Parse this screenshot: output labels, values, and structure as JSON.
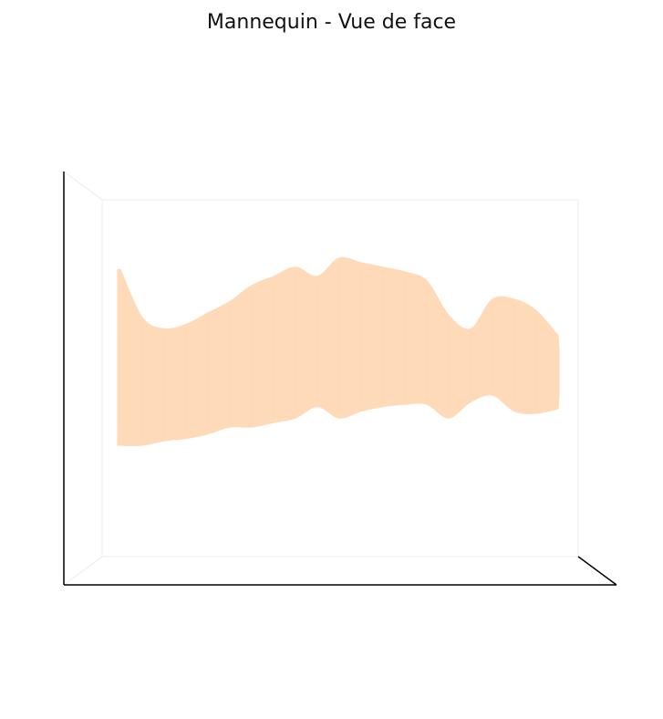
{
  "chart_data": {
    "type": "3d-surface",
    "title": "Mannequin - Vue de face",
    "view": "front",
    "axes_visible": false,
    "grid": false,
    "panes": "white",
    "colors": {
      "surface": "#FFDAB9",
      "surface_shade": "#F7C99E",
      "axis_line": "#000000",
      "pane_edge": "#EBEBEB"
    },
    "series": [
      {
        "profile": {
          "z": [
            0.0,
            0.05,
            0.1,
            0.15,
            0.2,
            0.25,
            0.3,
            0.35,
            0.4,
            0.45,
            0.5,
            0.55,
            0.6,
            0.65,
            0.7,
            0.75,
            0.8,
            0.85,
            0.9,
            0.95,
            1.0
          ],
          "width_upper": [
            0.43,
            0.22,
            0.17,
            0.19,
            0.24,
            0.29,
            0.36,
            0.4,
            0.44,
            0.4,
            0.48,
            0.46,
            0.44,
            0.42,
            0.38,
            0.23,
            0.17,
            0.3,
            0.3,
            0.25,
            0.14
          ],
          "width_lower": [
            0.34,
            0.34,
            0.32,
            0.31,
            0.29,
            0.26,
            0.26,
            0.24,
            0.22,
            0.17,
            0.22,
            0.19,
            0.17,
            0.16,
            0.16,
            0.22,
            0.15,
            0.12,
            0.19,
            0.2,
            0.18
          ]
        }
      }
    ]
  }
}
